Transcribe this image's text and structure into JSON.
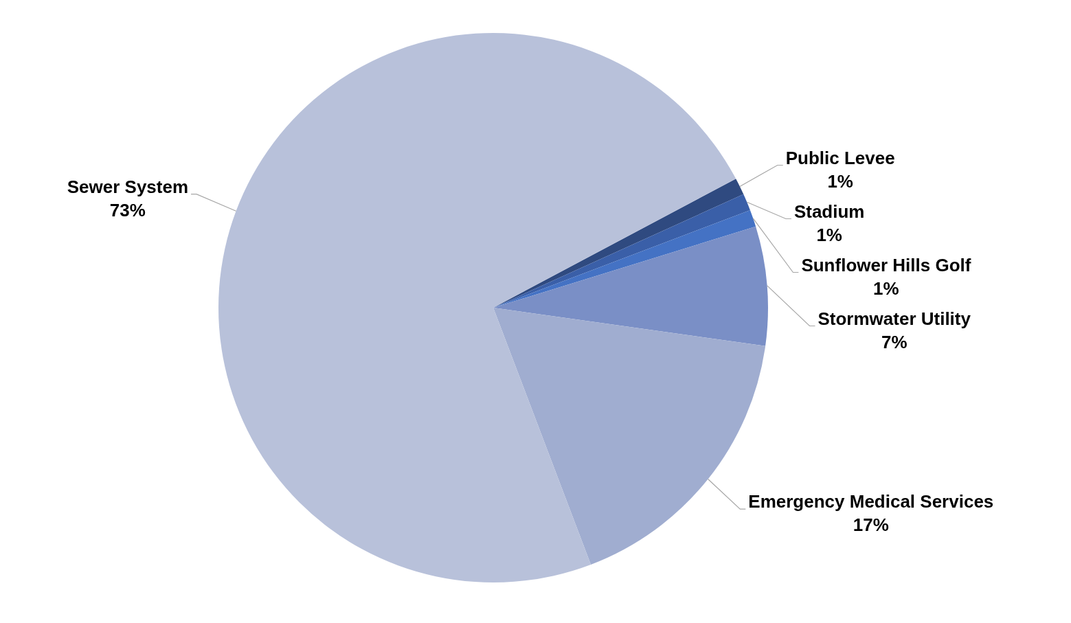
{
  "chart_data": {
    "type": "pie",
    "categories": [
      "Public Levee",
      "Stadium",
      "Sunflower Hills Golf",
      "Stormwater Utility",
      "Emergency Medical Services",
      "Sewer System"
    ],
    "values": [
      1,
      1,
      1,
      7,
      17,
      73
    ],
    "value_labels": [
      "1%",
      "1%",
      "1%",
      "7%",
      "17%",
      "73%"
    ],
    "colors": [
      "#2f4a80",
      "#3a5fa8",
      "#4472c4",
      "#7a8fc6",
      "#a0add0",
      "#b8c1da"
    ],
    "legend": false
  }
}
